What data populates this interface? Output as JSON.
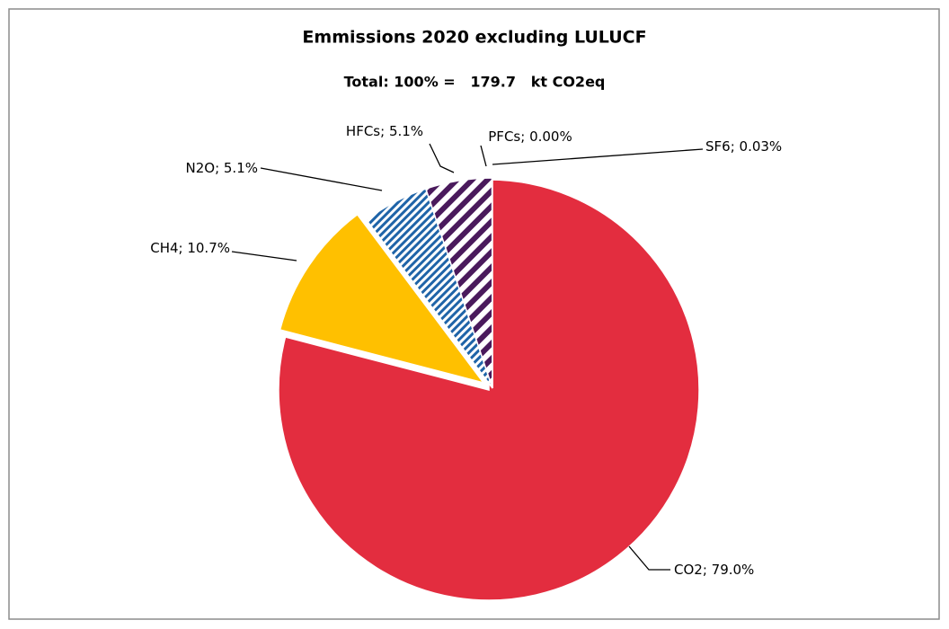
{
  "chart_data": {
    "type": "pie",
    "title": "Emmissions 2020 excluding LULUCF",
    "subtitle": "Total: 100% =   179.7   kt CO2eq",
    "categories": [
      "CO2",
      "CH4",
      "N2O",
      "HFCs",
      "PFCs",
      "SF6"
    ],
    "values": [
      79.0,
      10.7,
      5.1,
      5.1,
      0.0,
      0.03
    ],
    "value_labels": [
      "79.0%",
      "10.7%",
      "5.1%",
      "5.1%",
      "0.00%",
      "0.03%"
    ],
    "separator": "; ",
    "colors": [
      "#e32d3f",
      "#ffc000",
      "#1f64a8",
      "#4a1a5c",
      "#3c1650",
      "#2a1040"
    ],
    "patterns": [
      null,
      null,
      "fine",
      "wide",
      "wide",
      "wide"
    ]
  }
}
